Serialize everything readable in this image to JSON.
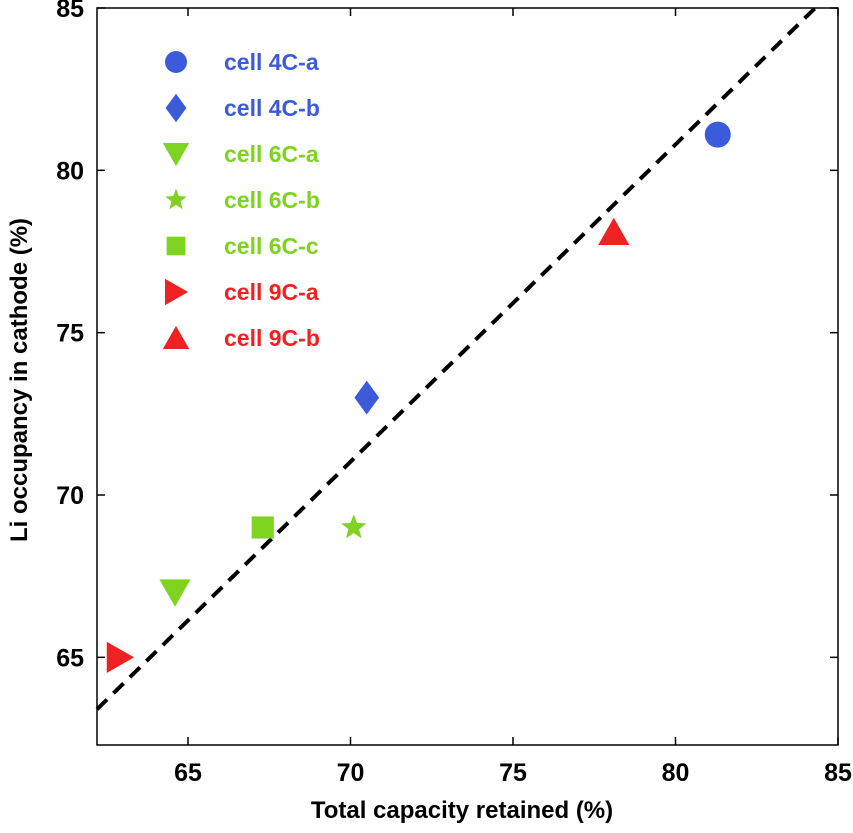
{
  "chart_data": {
    "type": "scatter",
    "xlabel": "Total capacity retained (%)",
    "ylabel": "Li occupancy in cathode (%)",
    "xlim": [
      62.2,
      85
    ],
    "ylim": [
      62.3,
      85
    ],
    "xticks": [
      "65",
      "70",
      "75",
      "80",
      "85"
    ],
    "yticks": [
      "65",
      "70",
      "75",
      "80",
      "85"
    ],
    "legend_position": "top-left",
    "grid": false,
    "series": [
      {
        "name": "cell 4C-a",
        "marker": "circle",
        "color": "#3b5bdb",
        "points": [
          {
            "x": 81.3,
            "y": 81.1
          }
        ]
      },
      {
        "name": "cell 4C-b",
        "marker": "diamond",
        "color": "#3b5bdb",
        "points": [
          {
            "x": 70.5,
            "y": 73.0
          }
        ]
      },
      {
        "name": "cell 6C-a",
        "marker": "triangle-down",
        "color": "#7ed321",
        "points": [
          {
            "x": 64.6,
            "y": 67.0
          }
        ]
      },
      {
        "name": "cell 6C-b",
        "marker": "star",
        "color": "#7ed321",
        "points": [
          {
            "x": 70.1,
            "y": 69.0
          }
        ]
      },
      {
        "name": "cell 6C-c",
        "marker": "square",
        "color": "#7ed321",
        "points": [
          {
            "x": 67.3,
            "y": 69.0
          }
        ]
      },
      {
        "name": "cell 9C-a",
        "marker": "triangle-right",
        "color": "#ee2222",
        "points": [
          {
            "x": 62.9,
            "y": 65.0
          }
        ]
      },
      {
        "name": "cell 9C-b",
        "marker": "triangle-up",
        "color": "#ee2222",
        "points": [
          {
            "x": 78.1,
            "y": 78.1
          }
        ]
      }
    ],
    "fit_line": {
      "style": "dashed",
      "color": "#000000",
      "x": [
        62.2,
        84.3
      ],
      "y": [
        63.4,
        85.0
      ]
    }
  }
}
